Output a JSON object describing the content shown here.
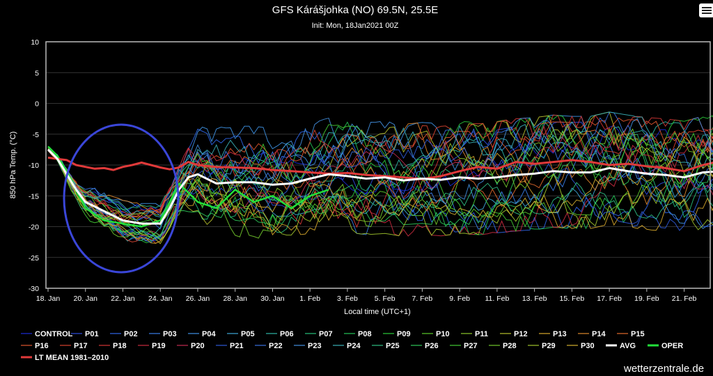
{
  "chart_data": {
    "type": "line",
    "title": "GFS Kárášjohka (NO) 69.5N, 25.5E",
    "subtitle": "Init: Mon, 18Jan2021 00Z",
    "xlabel": "Local time (UTC+1)",
    "ylabel": "850 hPa Temp. (°C)",
    "ylim": [
      -30,
      10
    ],
    "yticks": [
      10,
      5,
      0,
      -5,
      -10,
      -15,
      -20,
      -25,
      -30
    ],
    "xlim": [
      0,
      36.4
    ],
    "xtick_labels": [
      "18. Jan",
      "20. Jan",
      "22. Jan",
      "24. Jan",
      "26. Jan",
      "28. Jan",
      "30. Jan",
      "1. Feb",
      "3. Feb",
      "5. Feb",
      "7. Feb",
      "9. Feb",
      "11. Feb",
      "13. Feb",
      "15. Feb",
      "17. Feb",
      "19. Feb",
      "21. Feb"
    ],
    "xtick_days": [
      0,
      2,
      4,
      6,
      8,
      10,
      12,
      14,
      16,
      18,
      20,
      22,
      24,
      26,
      28,
      30,
      32,
      34
    ],
    "grid": true,
    "annotation": "ellipse highlighting 19–24 Jan cold dip",
    "legend_position": "bottom",
    "legend": [
      {
        "name": "CONTROL",
        "color": "#1a2bd8"
      },
      {
        "name": "P01",
        "color": "#2b4ee0"
      },
      {
        "name": "P02",
        "color": "#2f66e8"
      },
      {
        "name": "P03",
        "color": "#3a7ee8"
      },
      {
        "name": "P04",
        "color": "#3f93e6"
      },
      {
        "name": "P05",
        "color": "#3ea8d8"
      },
      {
        "name": "P06",
        "color": "#2fb8a8"
      },
      {
        "name": "P07",
        "color": "#27c07c"
      },
      {
        "name": "P08",
        "color": "#24c456"
      },
      {
        "name": "P09",
        "color": "#2acb3a"
      },
      {
        "name": "P10",
        "color": "#5acc2a"
      },
      {
        "name": "P11",
        "color": "#8cc82a"
      },
      {
        "name": "P12",
        "color": "#b8c22c"
      },
      {
        "name": "P13",
        "color": "#d8a82c"
      },
      {
        "name": "P14",
        "color": "#e0882c"
      },
      {
        "name": "P15",
        "color": "#e26a2c"
      },
      {
        "name": "P16",
        "color": "#e0562e"
      },
      {
        "name": "P17",
        "color": "#d84430"
      },
      {
        "name": "P18",
        "color": "#d43636"
      },
      {
        "name": "P19",
        "color": "#cc2c40"
      },
      {
        "name": "P20",
        "color": "#c42c52"
      },
      {
        "name": "P21",
        "color": "#2f5ad8"
      },
      {
        "name": "P22",
        "color": "#3a72e0"
      },
      {
        "name": "P23",
        "color": "#4290e0"
      },
      {
        "name": "P24",
        "color": "#3ab0b8"
      },
      {
        "name": "P25",
        "color": "#30c086"
      },
      {
        "name": "P26",
        "color": "#2ec85a"
      },
      {
        "name": "P27",
        "color": "#44cc34"
      },
      {
        "name": "P28",
        "color": "#72c82c"
      },
      {
        "name": "P29",
        "color": "#a0c42c"
      },
      {
        "name": "P30",
        "color": "#d4b030"
      },
      {
        "name": "AVG",
        "color": "#ffffff"
      },
      {
        "name": "OPER",
        "color": "#22e03a"
      },
      {
        "name": "LT MEAN 1981–2010",
        "color": "#e03a3a"
      }
    ],
    "series": [
      {
        "name": "AVG",
        "x": [
          0,
          0.5,
          1,
          1.5,
          2,
          3,
          4,
          5,
          6,
          6.5,
          7,
          7.5,
          8,
          9,
          10,
          11,
          12,
          13,
          14,
          15,
          16,
          17,
          18,
          19,
          20,
          21,
          22,
          23,
          24,
          25,
          26,
          27,
          28,
          29,
          30,
          31,
          32,
          33,
          34,
          35,
          36,
          36.4
        ],
        "values": [
          -7.5,
          -9,
          -11.5,
          -14,
          -16,
          -17.5,
          -19,
          -19.5,
          -19.5,
          -17,
          -14,
          -12,
          -11.5,
          -13,
          -12.8,
          -12.8,
          -13.2,
          -13,
          -12.2,
          -11.5,
          -11.8,
          -12.2,
          -12,
          -12.5,
          -12.2,
          -12.4,
          -12,
          -12.2,
          -12,
          -11.6,
          -11.4,
          -11,
          -11.2,
          -11.2,
          -10.5,
          -11,
          -11.4,
          -11.6,
          -12,
          -11.2,
          -11,
          -11.8
        ]
      },
      {
        "name": "LT MEAN 1981–2010",
        "x": [
          0,
          0.5,
          1,
          1.5,
          2,
          2.5,
          3,
          3.5,
          4,
          4.5,
          5,
          5.5,
          6,
          6.5,
          7,
          7.5,
          8,
          9,
          10,
          11,
          12,
          13,
          14,
          15,
          16,
          17,
          18,
          19,
          20,
          21,
          22,
          23,
          24,
          25,
          26,
          27,
          28,
          29,
          30,
          31,
          32,
          33,
          34,
          35,
          36,
          36.4
        ],
        "values": [
          -8.8,
          -9,
          -9.2,
          -10,
          -10.3,
          -10.6,
          -10.5,
          -10.8,
          -10.3,
          -10,
          -9.6,
          -10,
          -10.4,
          -10.7,
          -10.4,
          -9.5,
          -10,
          -10.3,
          -10.4,
          -10.5,
          -10.8,
          -11,
          -11.2,
          -11.4,
          -11.3,
          -11.6,
          -11.8,
          -12,
          -12.3,
          -11.8,
          -11,
          -10.3,
          -10.6,
          -9.5,
          -9.8,
          -9.5,
          -9.2,
          -9.5,
          -10,
          -9.8,
          -10.2,
          -10.5,
          -11,
          -10,
          -9.3,
          -9.5
        ]
      },
      {
        "name": "OPER",
        "x": [
          0,
          0.5,
          1,
          1.5,
          2,
          3,
          4,
          5,
          6,
          6.5,
          7,
          8,
          9,
          10,
          11,
          12,
          13,
          14,
          15
        ],
        "values": [
          -7,
          -8.5,
          -11,
          -14,
          -17,
          -19,
          -19.5,
          -20,
          -19,
          -16,
          -13,
          -16,
          -17,
          -14,
          -16,
          -15,
          -17,
          -15,
          -14
        ]
      }
    ]
  },
  "watermark": "wetterzentrale.de"
}
